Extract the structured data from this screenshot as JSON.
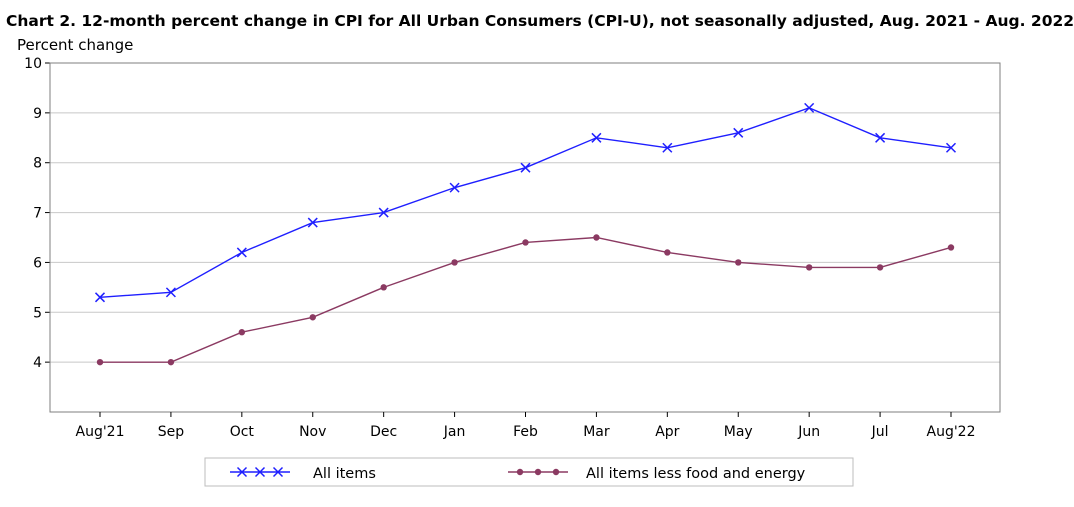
{
  "chart_data": {
    "type": "line",
    "title": "Chart 2. 12-month percent change in CPI for All Urban Consumers (CPI-U), not seasonally adjusted, Aug. 2021 - Aug. 2022",
    "ylabel": "Percent change",
    "xlabel": "",
    "categories": [
      "Aug'21",
      "Sep",
      "Oct",
      "Nov",
      "Dec",
      "Jan",
      "Feb",
      "Mar",
      "Apr",
      "May",
      "Jun",
      "Jul",
      "Aug'22"
    ],
    "ylim": [
      3,
      10
    ],
    "yticks": [
      "4",
      "5",
      "6",
      "7",
      "8",
      "9",
      "10"
    ],
    "grid": "horizontal",
    "legend_position": "bottom",
    "series": [
      {
        "name": "All items",
        "color": "#1f1fff",
        "marker": "x",
        "values": [
          5.3,
          5.4,
          6.2,
          6.8,
          7.0,
          7.5,
          7.9,
          8.5,
          8.3,
          8.6,
          9.1,
          8.5,
          8.3
        ]
      },
      {
        "name": "All items less food and energy",
        "color": "#8b3a62",
        "marker": "circle",
        "values": [
          4.0,
          4.0,
          4.6,
          4.9,
          5.5,
          6.0,
          6.4,
          6.5,
          6.2,
          6.0,
          5.9,
          5.9,
          6.3
        ]
      }
    ]
  }
}
